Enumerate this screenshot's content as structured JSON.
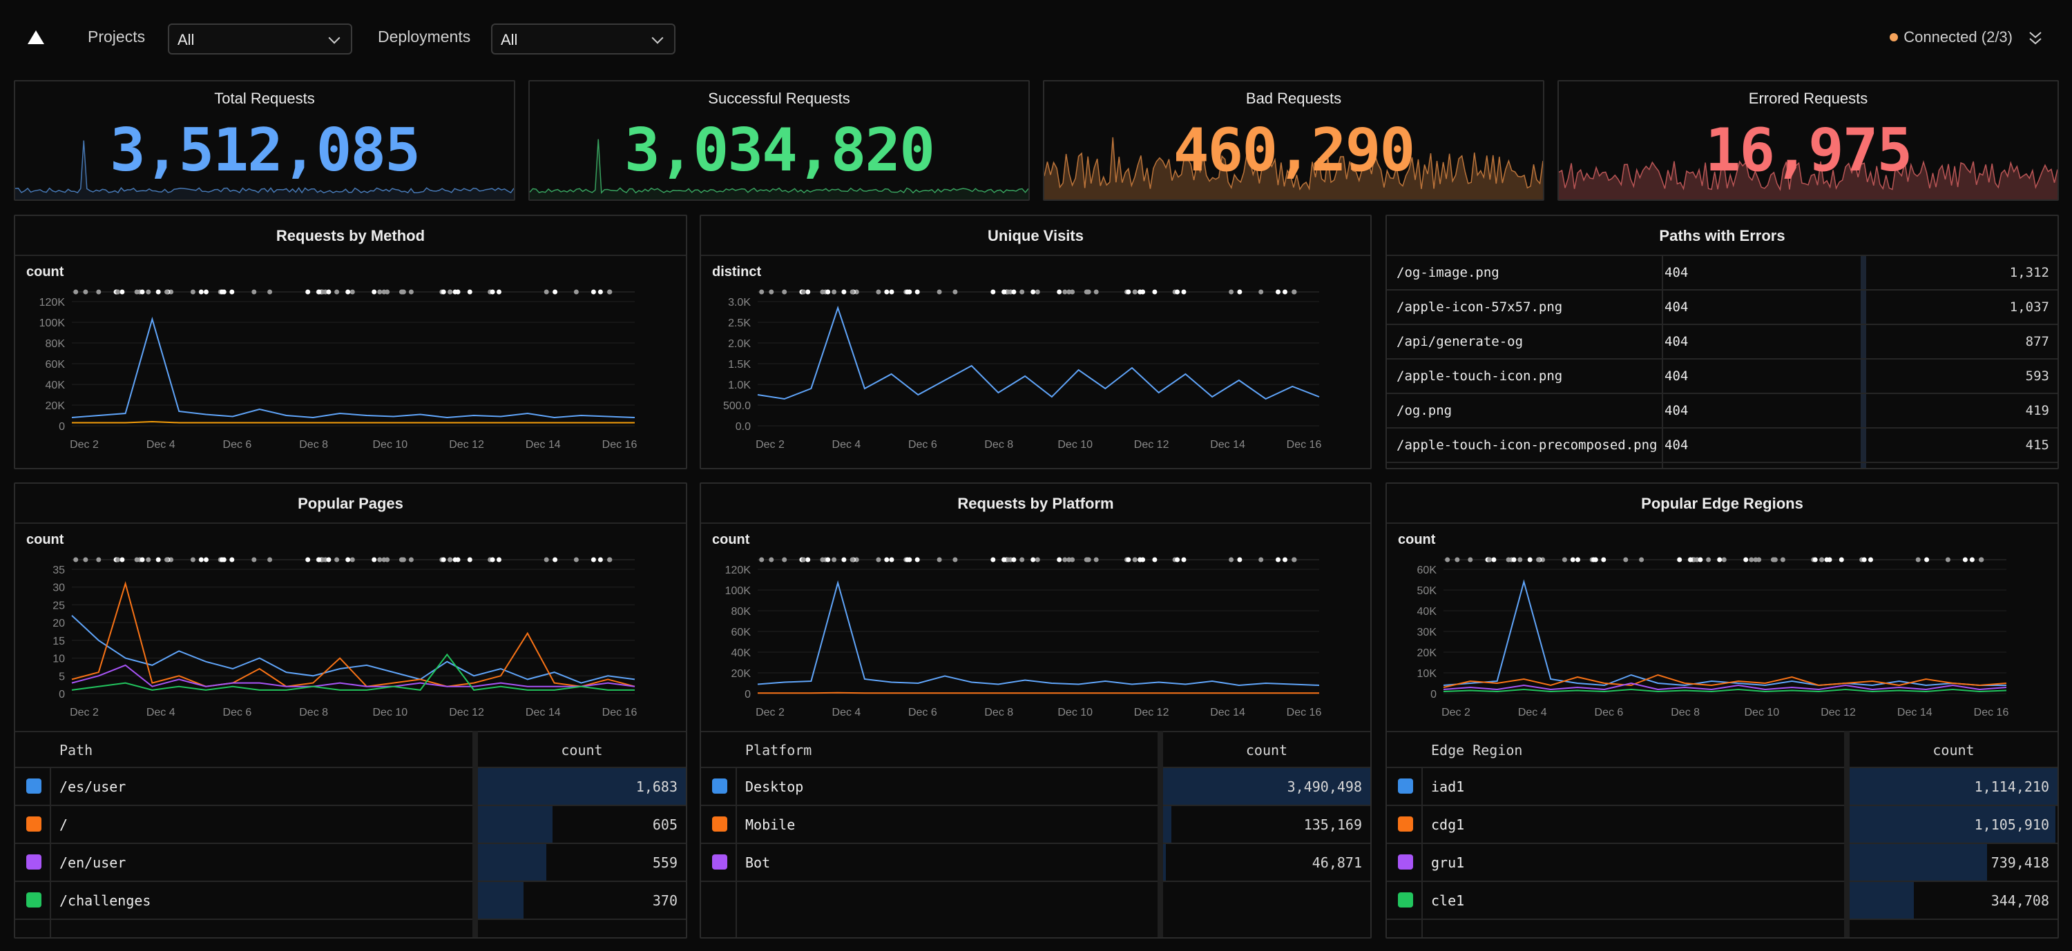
{
  "topbar": {
    "projects_label": "Projects",
    "projects_value": "All",
    "deployments_label": "Deployments",
    "deployments_value": "All",
    "status": "Connected (2/3)"
  },
  "stats": [
    {
      "title": "Total Requests",
      "value": "3,512,085",
      "color": "#60a5fa"
    },
    {
      "title": "Successful Requests",
      "value": "3,034,820",
      "color": "#4ade80"
    },
    {
      "title": "Bad Requests",
      "value": "460,290",
      "color": "#fb9a4b"
    },
    {
      "title": "Errored Requests",
      "value": "16,975",
      "color": "#f87171"
    }
  ],
  "panels": {
    "method": {
      "title": "Requests by Method",
      "ylabel": "count"
    },
    "visits": {
      "title": "Unique Visits",
      "ylabel": "distinct"
    },
    "errors": {
      "title": "Paths with Errors"
    },
    "pages": {
      "title": "Popular Pages",
      "ylabel": "count"
    },
    "platform": {
      "title": "Requests by Platform",
      "ylabel": "count"
    },
    "regions": {
      "title": "Popular Edge Regions",
      "ylabel": "count"
    }
  },
  "x_ticks": [
    "Dec 2",
    "Dec 4",
    "Dec 6",
    "Dec 8",
    "Dec 10",
    "Dec 12",
    "Dec 14",
    "Dec 16"
  ],
  "chart_data": [
    {
      "type": "line",
      "title": "Requests by Method",
      "ylabel": "count",
      "yticks": [
        "0",
        "20K",
        "40K",
        "60K",
        "80K",
        "100K",
        "120K"
      ],
      "ylim": [
        0,
        120000
      ],
      "series": [
        {
          "values": [
            8000,
            10000,
            12000,
            103000,
            14000,
            11000,
            9000,
            16000,
            10000,
            8000,
            12000,
            10000,
            9000,
            11000,
            8000,
            10000,
            9000,
            12000,
            8000,
            10000,
            9000,
            8000
          ],
          "color": "#60a5fa"
        },
        {
          "values": [
            3000,
            3000,
            3000,
            4000,
            3000,
            3000,
            3000,
            3000,
            3000,
            3000,
            3000,
            3000,
            3000,
            3000,
            3000,
            3000,
            3000,
            3000,
            3000,
            3000,
            3000,
            3000
          ],
          "color": "#f59e0b"
        }
      ]
    },
    {
      "type": "line",
      "title": "Unique Visits",
      "ylabel": "distinct",
      "yticks": [
        "0.0",
        "500.0",
        "1.0K",
        "1.5K",
        "2.0K",
        "2.5K",
        "3.0K"
      ],
      "ylim": [
        0,
        3000
      ],
      "series": [
        {
          "values": [
            750,
            650,
            900,
            2850,
            900,
            1250,
            750,
            1100,
            1450,
            800,
            1200,
            700,
            1350,
            900,
            1400,
            800,
            1250,
            700,
            1100,
            650,
            950,
            700
          ],
          "color": "#60a5fa"
        }
      ]
    },
    {
      "type": "line",
      "title": "Popular Pages",
      "ylabel": "count",
      "yticks": [
        "0",
        "5",
        "10",
        "15",
        "20",
        "25",
        "30",
        "35"
      ],
      "ylim": [
        0,
        35
      ],
      "series": [
        {
          "values": [
            22,
            15,
            10,
            8,
            12,
            9,
            7,
            10,
            6,
            5,
            7,
            8,
            6,
            4,
            9,
            5,
            7,
            4,
            6,
            3,
            5,
            4
          ],
          "color": "#60a5fa"
        },
        {
          "values": [
            4,
            6,
            31,
            3,
            5,
            2,
            3,
            7,
            2,
            3,
            10,
            2,
            3,
            4,
            2,
            3,
            5,
            17,
            3,
            2,
            4,
            2
          ],
          "color": "#f97316"
        },
        {
          "values": [
            3,
            5,
            8,
            2,
            4,
            2,
            3,
            3,
            2,
            2,
            3,
            2,
            2,
            3,
            2,
            2,
            3,
            2,
            2,
            2,
            3,
            2
          ],
          "color": "#a855f7"
        },
        {
          "values": [
            1,
            2,
            3,
            1,
            2,
            1,
            2,
            1,
            1,
            2,
            1,
            1,
            2,
            1,
            11,
            1,
            2,
            1,
            1,
            2,
            1,
            1
          ],
          "color": "#22c55e"
        }
      ]
    },
    {
      "type": "line",
      "title": "Requests by Platform",
      "ylabel": "count",
      "yticks": [
        "0",
        "20K",
        "40K",
        "60K",
        "80K",
        "100K",
        "120K"
      ],
      "ylim": [
        0,
        120000
      ],
      "series": [
        {
          "values": [
            9000,
            11000,
            12000,
            107000,
            14000,
            11000,
            10000,
            17000,
            11000,
            9000,
            13000,
            10000,
            9000,
            12000,
            9000,
            11000,
            9000,
            12000,
            8000,
            10000,
            9000,
            8000
          ],
          "color": "#60a5fa"
        },
        {
          "values": [
            500,
            500,
            500,
            800,
            500,
            500,
            500,
            500,
            500,
            500,
            500,
            500,
            500,
            500,
            500,
            500,
            500,
            500,
            500,
            500,
            500,
            500
          ],
          "color": "#f97316"
        }
      ]
    },
    {
      "type": "line",
      "title": "Popular Edge Regions",
      "ylabel": "count",
      "yticks": [
        "0",
        "10K",
        "20K",
        "30K",
        "40K",
        "50K",
        "60K"
      ],
      "ylim": [
        0,
        60000
      ],
      "series": [
        {
          "values": [
            4000,
            5000,
            6000,
            54000,
            7000,
            5000,
            4000,
            9000,
            5000,
            4000,
            6000,
            5000,
            4000,
            6000,
            4000,
            5000,
            4000,
            6000,
            4000,
            5000,
            4000,
            4000
          ],
          "color": "#60a5fa"
        },
        {
          "values": [
            3000,
            6000,
            5000,
            7000,
            4000,
            8000,
            5000,
            4000,
            9000,
            5000,
            4000,
            6000,
            5000,
            8000,
            4000,
            5000,
            6000,
            4000,
            7000,
            5000,
            4000,
            5000
          ],
          "color": "#f97316"
        },
        {
          "values": [
            2000,
            3000,
            2000,
            4000,
            2000,
            3000,
            2000,
            5000,
            2000,
            3000,
            2000,
            4000,
            2000,
            3000,
            2000,
            4000,
            2000,
            3000,
            2000,
            4000,
            2000,
            3000
          ],
          "color": "#a855f7"
        },
        {
          "values": [
            1000,
            1500,
            1000,
            2000,
            1000,
            1500,
            1000,
            2000,
            1000,
            1500,
            1000,
            2000,
            1000,
            1500,
            1000,
            2000,
            1000,
            1500,
            1000,
            2000,
            1000,
            1500
          ],
          "color": "#22c55e"
        }
      ]
    }
  ],
  "error_paths": [
    {
      "path": "/og-image.png",
      "code": "404",
      "count": "1,312"
    },
    {
      "path": "/apple-icon-57x57.png",
      "code": "404",
      "count": "1,037"
    },
    {
      "path": "/api/generate-og",
      "code": "404",
      "count": "877"
    },
    {
      "path": "/apple-touch-icon.png",
      "code": "404",
      "count": "593"
    },
    {
      "path": "/og.png",
      "code": "404",
      "count": "419"
    },
    {
      "path": "/apple-touch-icon-precomposed.png",
      "code": "404",
      "count": "415"
    }
  ],
  "pages_table": {
    "col_name": "Path",
    "col_count": "count",
    "rows": [
      {
        "name": "/es/user",
        "count": "1,683",
        "frac": 1.0,
        "color": "#3b8ee8"
      },
      {
        "name": "/",
        "count": "605",
        "frac": 0.36,
        "color": "#f97316"
      },
      {
        "name": "/en/user",
        "count": "559",
        "frac": 0.33,
        "color": "#a855f7"
      },
      {
        "name": "/challenges",
        "count": "370",
        "frac": 0.22,
        "color": "#22c55e"
      }
    ]
  },
  "platform_table": {
    "col_name": "Platform",
    "col_count": "count",
    "rows": [
      {
        "name": "Desktop",
        "count": "3,490,498",
        "frac": 1.0,
        "color": "#3b8ee8"
      },
      {
        "name": "Mobile",
        "count": "135,169",
        "frac": 0.04,
        "color": "#f97316"
      },
      {
        "name": "Bot",
        "count": "46,871",
        "frac": 0.013,
        "color": "#a855f7"
      }
    ]
  },
  "regions_table": {
    "col_name": "Edge Region",
    "col_count": "count",
    "rows": [
      {
        "name": "iad1",
        "count": "1,114,210",
        "frac": 1.0,
        "color": "#3b8ee8"
      },
      {
        "name": "cdg1",
        "count": "1,105,910",
        "frac": 0.99,
        "color": "#f97316"
      },
      {
        "name": "gru1",
        "count": "739,418",
        "frac": 0.66,
        "color": "#a855f7"
      },
      {
        "name": "cle1",
        "count": "344,708",
        "frac": 0.31,
        "color": "#22c55e"
      }
    ]
  }
}
